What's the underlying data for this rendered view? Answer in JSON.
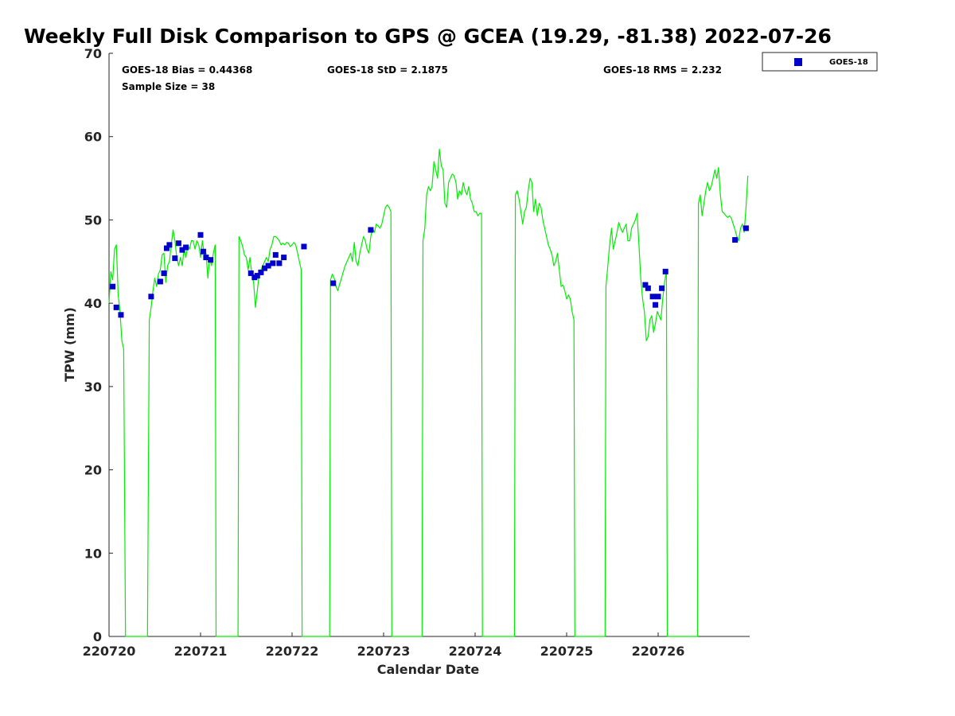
{
  "chart_data": {
    "type": "line",
    "title": "Weekly Full Disk Comparison to GPS @ GCEA (19.29, -81.38) 2022-07-26",
    "xlabel": "Calendar Date",
    "ylabel": "TPW (mm)",
    "xlim": [
      0,
      7
    ],
    "ylim": [
      0,
      70
    ],
    "x_ticks": [
      0,
      1,
      2,
      3,
      4,
      5,
      6
    ],
    "x_tick_labels": [
      "220720",
      "220721",
      "220722",
      "220723",
      "220724",
      "220725",
      "220726"
    ],
    "y_ticks": [
      0,
      10,
      20,
      30,
      40,
      50,
      60,
      70
    ],
    "y_tick_labels": [
      "0",
      "10",
      "20",
      "30",
      "40",
      "50",
      "60",
      "70"
    ],
    "stats": {
      "bias": "GOES-18 Bias = 0.44368",
      "std": "GOES-18 StD = 2.1875",
      "rms": "GOES-18 RMS = 2.232",
      "sample_size": "Sample Size = 38"
    },
    "legend": {
      "position": "top-right",
      "entries": [
        "GOES-18"
      ]
    },
    "colors": {
      "gps_line": "#00ee00",
      "goes_marker": "#0000cc",
      "axis": "#262626"
    },
    "gps_series": [
      [
        0.0,
        40.0
      ],
      [
        0.02,
        43.8
      ],
      [
        0.04,
        42.8
      ],
      [
        0.06,
        46.5
      ],
      [
        0.08,
        47.0
      ],
      [
        0.1,
        41.0
      ],
      [
        0.12,
        39.0
      ],
      [
        0.14,
        35.5
      ],
      [
        0.16,
        34.5
      ],
      [
        0.18,
        0.0
      ],
      [
        0.42,
        0.0
      ],
      [
        0.44,
        38.0
      ],
      [
        0.46,
        39.5
      ],
      [
        0.48,
        41.5
      ],
      [
        0.5,
        43.0
      ],
      [
        0.52,
        42.0
      ],
      [
        0.54,
        43.5
      ],
      [
        0.56,
        44.0
      ],
      [
        0.58,
        45.8
      ],
      [
        0.6,
        46.0
      ],
      [
        0.62,
        42.5
      ],
      [
        0.64,
        44.5
      ],
      [
        0.66,
        45.0
      ],
      [
        0.68,
        47.0
      ],
      [
        0.7,
        48.8
      ],
      [
        0.72,
        47.5
      ],
      [
        0.74,
        45.5
      ],
      [
        0.76,
        44.5
      ],
      [
        0.78,
        45.5
      ],
      [
        0.8,
        44.5
      ],
      [
        0.82,
        46.5
      ],
      [
        0.84,
        45.5
      ],
      [
        0.86,
        47.0
      ],
      [
        0.88,
        46.5
      ],
      [
        0.9,
        47.5
      ],
      [
        0.92,
        47.5
      ],
      [
        0.94,
        46.5
      ],
      [
        0.96,
        47.5
      ],
      [
        0.98,
        47.0
      ],
      [
        1.0,
        45.5
      ],
      [
        1.02,
        47.5
      ],
      [
        1.04,
        45.8
      ],
      [
        1.06,
        46.0
      ],
      [
        1.08,
        43.0
      ],
      [
        1.1,
        45.5
      ],
      [
        1.12,
        44.5
      ],
      [
        1.14,
        46.0
      ],
      [
        1.16,
        47.0
      ],
      [
        1.17,
        0.0
      ],
      [
        1.41,
        0.0
      ],
      [
        1.42,
        48.0
      ],
      [
        1.44,
        47.5
      ],
      [
        1.46,
        46.8
      ],
      [
        1.48,
        45.8
      ],
      [
        1.5,
        45.5
      ],
      [
        1.52,
        44.0
      ],
      [
        1.54,
        45.5
      ],
      [
        1.56,
        43.5
      ],
      [
        1.58,
        42.5
      ],
      [
        1.6,
        39.5
      ],
      [
        1.62,
        41.5
      ],
      [
        1.64,
        43.5
      ],
      [
        1.66,
        44.0
      ],
      [
        1.68,
        44.5
      ],
      [
        1.7,
        45.0
      ],
      [
        1.72,
        45.5
      ],
      [
        1.74,
        45.0
      ],
      [
        1.76,
        46.5
      ],
      [
        1.78,
        47.0
      ],
      [
        1.8,
        48.0
      ],
      [
        1.82,
        48.0
      ],
      [
        1.84,
        47.8
      ],
      [
        1.86,
        47.5
      ],
      [
        1.88,
        47.0
      ],
      [
        1.9,
        47.2
      ],
      [
        1.92,
        47.0
      ],
      [
        1.94,
        47.3
      ],
      [
        1.96,
        47.2
      ],
      [
        1.98,
        46.8
      ],
      [
        2.0,
        47.0
      ],
      [
        2.02,
        47.3
      ],
      [
        2.04,
        47.0
      ],
      [
        2.06,
        46.0
      ],
      [
        2.08,
        45.0
      ],
      [
        2.1,
        44.0
      ],
      [
        2.11,
        0.0
      ],
      [
        2.41,
        0.0
      ],
      [
        2.42,
        42.8
      ],
      [
        2.44,
        43.5
      ],
      [
        2.46,
        43.0
      ],
      [
        2.48,
        42.0
      ],
      [
        2.5,
        41.5
      ],
      [
        2.52,
        42.3
      ],
      [
        2.54,
        43.0
      ],
      [
        2.56,
        43.8
      ],
      [
        2.58,
        44.5
      ],
      [
        2.6,
        45.0
      ],
      [
        2.62,
        45.5
      ],
      [
        2.64,
        46.0
      ],
      [
        2.66,
        45.0
      ],
      [
        2.68,
        47.3
      ],
      [
        2.7,
        45.0
      ],
      [
        2.72,
        44.5
      ],
      [
        2.74,
        46.0
      ],
      [
        2.76,
        47.0
      ],
      [
        2.78,
        48.0
      ],
      [
        2.8,
        47.5
      ],
      [
        2.82,
        46.5
      ],
      [
        2.84,
        46.0
      ],
      [
        2.86,
        48.0
      ],
      [
        2.88,
        49.0
      ],
      [
        2.9,
        48.5
      ],
      [
        2.92,
        49.5
      ],
      [
        2.94,
        49.3
      ],
      [
        2.96,
        49.0
      ],
      [
        2.98,
        49.5
      ],
      [
        3.0,
        50.5
      ],
      [
        3.02,
        51.5
      ],
      [
        3.04,
        51.8
      ],
      [
        3.06,
        51.5
      ],
      [
        3.08,
        51.0
      ],
      [
        3.09,
        0.0
      ],
      [
        3.42,
        0.0
      ],
      [
        3.43,
        47.5
      ],
      [
        3.45,
        49.0
      ],
      [
        3.47,
        53.0
      ],
      [
        3.49,
        54.0
      ],
      [
        3.51,
        53.5
      ],
      [
        3.53,
        54.0
      ],
      [
        3.55,
        57.0
      ],
      [
        3.57,
        56.0
      ],
      [
        3.59,
        55.0
      ],
      [
        3.61,
        58.5
      ],
      [
        3.63,
        56.5
      ],
      [
        3.65,
        56.0
      ],
      [
        3.67,
        52.0
      ],
      [
        3.69,
        51.5
      ],
      [
        3.71,
        54.5
      ],
      [
        3.73,
        55.0
      ],
      [
        3.75,
        55.5
      ],
      [
        3.77,
        55.3
      ],
      [
        3.79,
        54.5
      ],
      [
        3.81,
        52.5
      ],
      [
        3.83,
        53.5
      ],
      [
        3.85,
        53.0
      ],
      [
        3.87,
        54.5
      ],
      [
        3.89,
        53.5
      ],
      [
        3.91,
        53.0
      ],
      [
        3.93,
        54.0
      ],
      [
        3.95,
        52.5
      ],
      [
        3.97,
        52.0
      ],
      [
        3.99,
        51.0
      ],
      [
        4.01,
        51.0
      ],
      [
        4.03,
        50.5
      ],
      [
        4.05,
        50.8
      ],
      [
        4.07,
        50.8
      ],
      [
        4.08,
        0.0
      ],
      [
        4.43,
        0.0
      ],
      [
        4.44,
        53.0
      ],
      [
        4.46,
        53.5
      ],
      [
        4.48,
        52.5
      ],
      [
        4.5,
        51.0
      ],
      [
        4.52,
        49.5
      ],
      [
        4.54,
        51.0
      ],
      [
        4.56,
        51.5
      ],
      [
        4.58,
        53.5
      ],
      [
        4.6,
        55.0
      ],
      [
        4.62,
        54.5
      ],
      [
        4.64,
        51.0
      ],
      [
        4.66,
        52.5
      ],
      [
        4.68,
        50.5
      ],
      [
        4.7,
        52.0
      ],
      [
        4.72,
        51.5
      ],
      [
        4.74,
        50.0
      ],
      [
        4.76,
        49.0
      ],
      [
        4.78,
        48.0
      ],
      [
        4.8,
        47.0
      ],
      [
        4.82,
        46.5
      ],
      [
        4.84,
        45.8
      ],
      [
        4.86,
        44.5
      ],
      [
        4.88,
        45.0
      ],
      [
        4.9,
        46.0
      ],
      [
        4.92,
        44.0
      ],
      [
        4.94,
        42.0
      ],
      [
        4.96,
        42.2
      ],
      [
        4.98,
        41.5
      ],
      [
        5.0,
        40.5
      ],
      [
        5.02,
        41.0
      ],
      [
        5.04,
        40.5
      ],
      [
        5.06,
        39.0
      ],
      [
        5.08,
        38.0
      ],
      [
        5.09,
        0.0
      ],
      [
        5.42,
        0.0
      ],
      [
        5.43,
        42.0
      ],
      [
        5.45,
        44.5
      ],
      [
        5.47,
        47.0
      ],
      [
        5.49,
        49.0
      ],
      [
        5.51,
        46.5
      ],
      [
        5.53,
        47.5
      ],
      [
        5.55,
        48.5
      ],
      [
        5.57,
        49.7
      ],
      [
        5.59,
        49.0
      ],
      [
        5.61,
        48.5
      ],
      [
        5.63,
        49.0
      ],
      [
        5.65,
        49.5
      ],
      [
        5.67,
        47.5
      ],
      [
        5.69,
        47.5
      ],
      [
        5.71,
        49.0
      ],
      [
        5.73,
        49.5
      ],
      [
        5.75,
        50.0
      ],
      [
        5.77,
        50.8
      ],
      [
        5.79,
        47.0
      ],
      [
        5.81,
        43.0
      ],
      [
        5.83,
        40.5
      ],
      [
        5.85,
        39.0
      ],
      [
        5.87,
        35.5
      ],
      [
        5.89,
        36.0
      ],
      [
        5.91,
        38.0
      ],
      [
        5.93,
        38.5
      ],
      [
        5.95,
        36.5
      ],
      [
        5.97,
        37.5
      ],
      [
        5.99,
        39.0
      ],
      [
        6.01,
        38.5
      ],
      [
        6.03,
        38.0
      ],
      [
        6.05,
        40.5
      ],
      [
        6.07,
        42.5
      ],
      [
        6.09,
        44.0
      ],
      [
        6.1,
        0.0
      ],
      [
        6.43,
        0.0
      ],
      [
        6.44,
        52.0
      ],
      [
        6.46,
        53.0
      ],
      [
        6.48,
        50.5
      ],
      [
        6.5,
        52.0
      ],
      [
        6.52,
        53.5
      ],
      [
        6.54,
        54.5
      ],
      [
        6.56,
        53.5
      ],
      [
        6.58,
        54.0
      ],
      [
        6.6,
        55.0
      ],
      [
        6.62,
        56.0
      ],
      [
        6.64,
        55.0
      ],
      [
        6.66,
        56.3
      ],
      [
        6.68,
        53.0
      ],
      [
        6.7,
        51.0
      ],
      [
        6.72,
        50.8
      ],
      [
        6.74,
        50.5
      ],
      [
        6.76,
        50.3
      ],
      [
        6.78,
        50.5
      ],
      [
        6.8,
        50.2
      ],
      [
        6.82,
        49.5
      ],
      [
        6.84,
        48.8
      ],
      [
        6.86,
        48.0
      ],
      [
        6.88,
        47.5
      ],
      [
        6.9,
        49.0
      ],
      [
        6.92,
        49.5
      ],
      [
        6.94,
        48.5
      ],
      [
        6.96,
        51.5
      ],
      [
        6.98,
        55.3
      ]
    ],
    "goes_points": [
      [
        0.04,
        42.0
      ],
      [
        0.08,
        39.5
      ],
      [
        0.13,
        38.6
      ],
      [
        0.46,
        40.8
      ],
      [
        0.56,
        42.6
      ],
      [
        0.6,
        43.6
      ],
      [
        0.63,
        46.6
      ],
      [
        0.66,
        47.0
      ],
      [
        0.72,
        45.4
      ],
      [
        0.76,
        47.2
      ],
      [
        0.8,
        46.4
      ],
      [
        0.84,
        46.7
      ],
      [
        1.0,
        48.2
      ],
      [
        1.03,
        46.2
      ],
      [
        1.06,
        45.5
      ],
      [
        1.11,
        45.2
      ],
      [
        1.55,
        43.6
      ],
      [
        1.59,
        43.1
      ],
      [
        1.62,
        43.3
      ],
      [
        1.66,
        43.7
      ],
      [
        1.7,
        44.2
      ],
      [
        1.74,
        44.5
      ],
      [
        1.79,
        44.8
      ],
      [
        1.82,
        45.8
      ],
      [
        1.86,
        44.8
      ],
      [
        1.91,
        45.5
      ],
      [
        2.13,
        46.8
      ],
      [
        2.45,
        42.4
      ],
      [
        2.86,
        48.8
      ],
      [
        5.86,
        42.2
      ],
      [
        5.89,
        41.8
      ],
      [
        5.94,
        40.8
      ],
      [
        5.97,
        39.8
      ],
      [
        6.0,
        40.8
      ],
      [
        6.04,
        41.8
      ],
      [
        6.08,
        43.8
      ],
      [
        6.84,
        47.6
      ],
      [
        6.96,
        49.0
      ]
    ]
  }
}
